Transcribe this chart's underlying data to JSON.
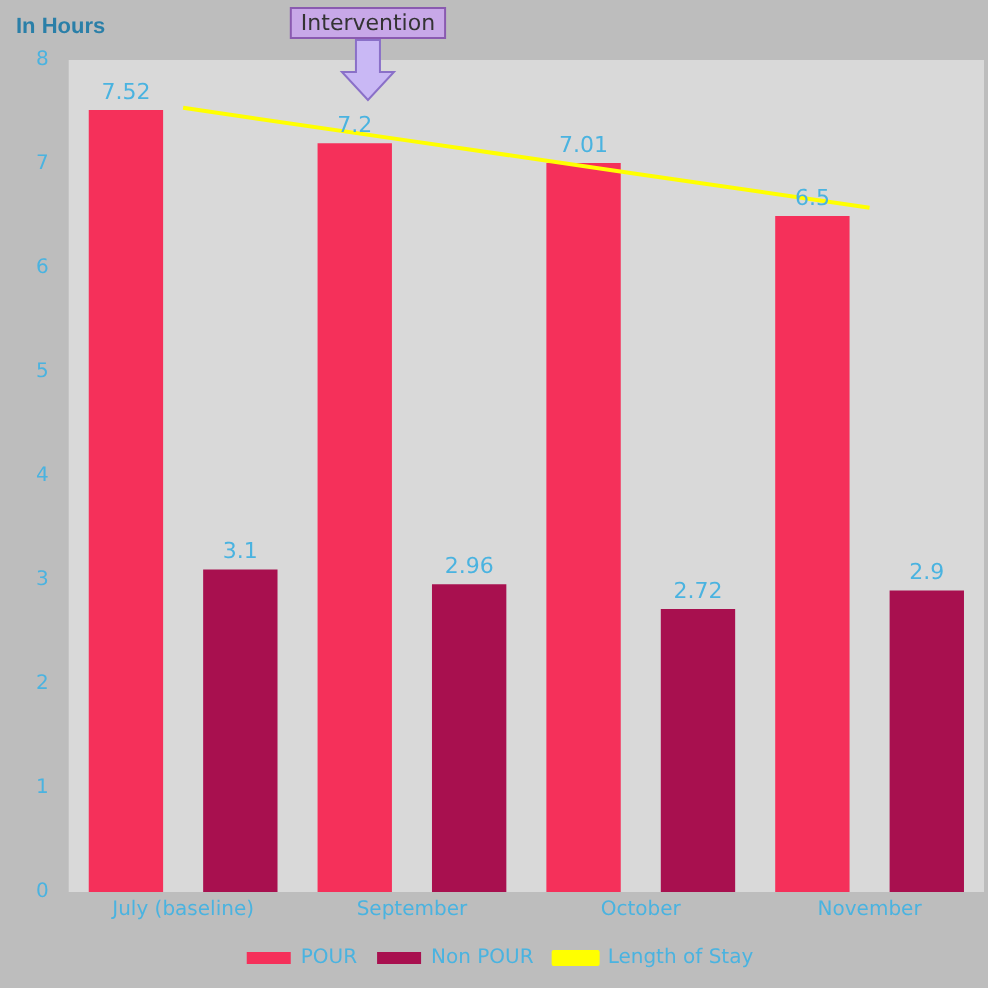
{
  "chart_data": {
    "type": "bar",
    "ylabel": "In Hours",
    "categories": [
      "July (baseline)",
      "September",
      "October",
      "November"
    ],
    "series": [
      {
        "name": "POUR",
        "color": "#f5305a",
        "values": [
          7.52,
          7.2,
          7.01,
          6.5
        ],
        "value_labels": [
          "7.52",
          "7.2",
          "7.01",
          "6.5"
        ]
      },
      {
        "name": "Non POUR",
        "color": "#a8104f",
        "values": [
          3.1,
          2.96,
          2.72,
          2.9
        ],
        "value_labels": [
          "3.1",
          "2.96",
          "2.72",
          "2.9"
        ]
      },
      {
        "name": "Length of Stay",
        "type": "line",
        "color": "#ffff00",
        "values": [
          7.54,
          7.22,
          6.9,
          6.58
        ],
        "marker": "none"
      }
    ],
    "ylim": [
      0,
      8
    ],
    "yticks": [
      0,
      1,
      2,
      3,
      4,
      5,
      6,
      7,
      8
    ],
    "grid": false,
    "legend": "bottom",
    "annotations": [
      "Intervention"
    ]
  }
}
